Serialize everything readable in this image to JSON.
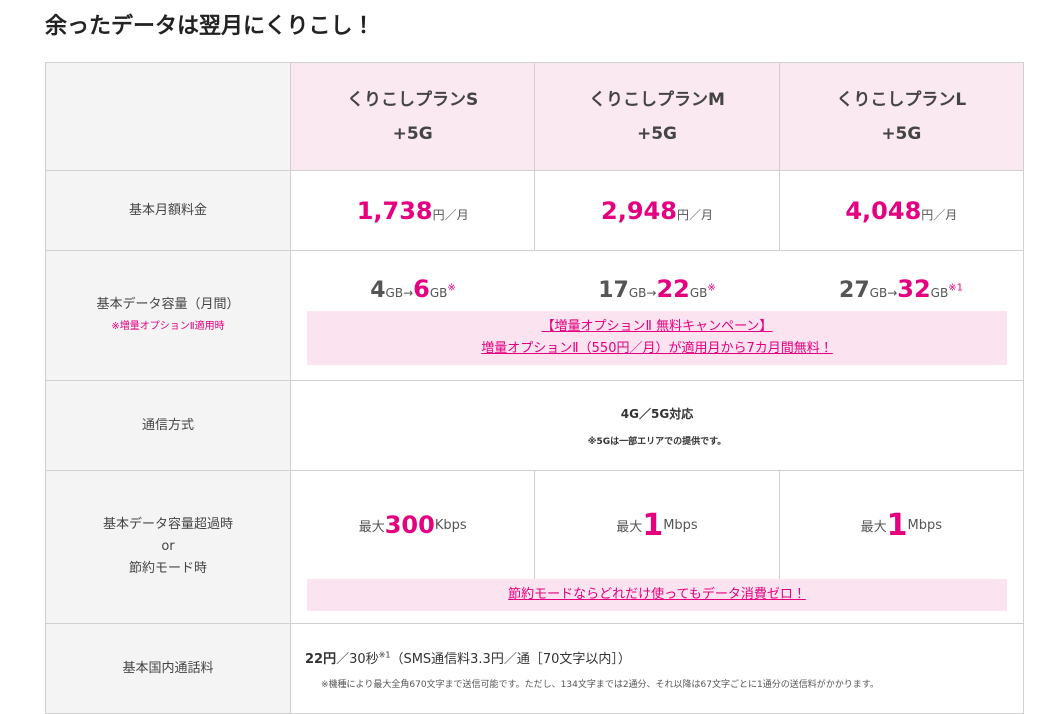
{
  "title": "余ったデータは翌月にくりこし！",
  "table": {
    "plans": [
      {
        "name": "くりこしプランS",
        "sub": "+5G"
      },
      {
        "name": "くりこしプランM",
        "sub": "+5G"
      },
      {
        "name": "くりこしプランL",
        "sub": "+5G"
      }
    ],
    "price": {
      "label": "基本月額料金",
      "cells": [
        {
          "amount": "1,738",
          "unit": "円／月"
        },
        {
          "amount": "2,948",
          "unit": "円／月"
        },
        {
          "amount": "4,048",
          "unit": "円／月"
        }
      ]
    },
    "data": {
      "label": "基本データ容量（月間）",
      "note": "※増量オプションⅡ適用時",
      "cells": [
        {
          "from": "4",
          "from_unit": "GB→",
          "to": "6",
          "to_unit": "GB",
          "mark": "※"
        },
        {
          "from": "17",
          "from_unit": "GB→",
          "to": "22",
          "to_unit": "GB",
          "mark": "※"
        },
        {
          "from": "27",
          "from_unit": "GB→",
          "to": "32",
          "to_unit": "GB",
          "mark": "※1"
        }
      ],
      "banner": [
        "【増量オプションⅡ 無料キャンペーン】",
        "増量オプションⅡ（550円／月）が適用月から7カ月間無料！"
      ]
    },
    "network": {
      "label": "通信方式",
      "text": "4G／5G対応",
      "note": "※5Gは一部エリアでの提供です。"
    },
    "overflow": {
      "label": [
        "基本データ容量超過時",
        "or",
        "節約モード時"
      ],
      "cells": [
        {
          "prefix": "最大",
          "speed": "300",
          "unit": "Kbps"
        },
        {
          "prefix": "最大",
          "speed": "1",
          "unit": "Mbps"
        },
        {
          "prefix": "最大",
          "speed": "1",
          "unit": "Mbps"
        }
      ],
      "banner": "節約モードならどれだけ使ってもデータ消費ゼロ！"
    },
    "call": {
      "label": "基本国内通話料",
      "price": "22円",
      "per": "／30秒",
      "sup": "※1",
      "detail": "（SMS通信料3.3円／通［70文字以内］）",
      "note": "※機種により最大全角670文字まで送信可能です。ただし、134文字までは2通分、それ以降は67文字ごとに1通分の送信料がかかります。"
    }
  }
}
